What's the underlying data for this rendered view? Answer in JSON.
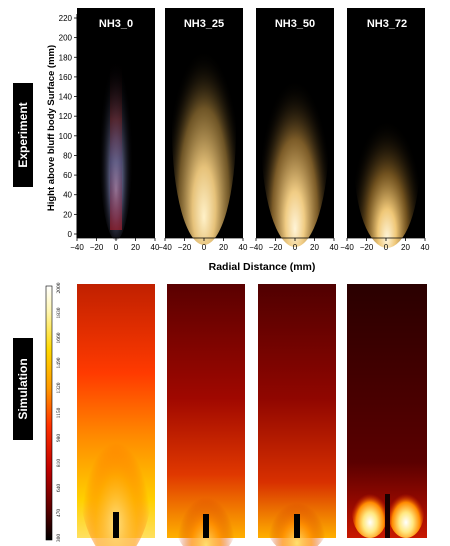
{
  "row_labels": {
    "experiment": "Experiment",
    "simulation": "Simulation"
  },
  "panels": [
    "NH3_0",
    "NH3_25",
    "NH3_50",
    "NH3_72"
  ],
  "experiment_axes": {
    "ylabel": "Hight above bluff body Surface (mm)",
    "xlabel": "Radial Distance (mm)",
    "yticks": [
      "0",
      "20",
      "40",
      "60",
      "80",
      "100",
      "120",
      "140",
      "160",
      "180",
      "200",
      "220"
    ],
    "xticks": [
      "−40",
      "−20",
      "0",
      "20",
      "40"
    ]
  },
  "colorbar": {
    "ticks": [
      "300",
      "470",
      "640",
      "810",
      "980",
      "1150",
      "1320",
      "1490",
      "1660",
      "1830",
      "2000"
    ],
    "colors": [
      "#000000",
      "#8b0000",
      "#ff0000",
      "#ff8c00",
      "#ffd700",
      "#fffacd",
      "#ffffff"
    ]
  }
}
